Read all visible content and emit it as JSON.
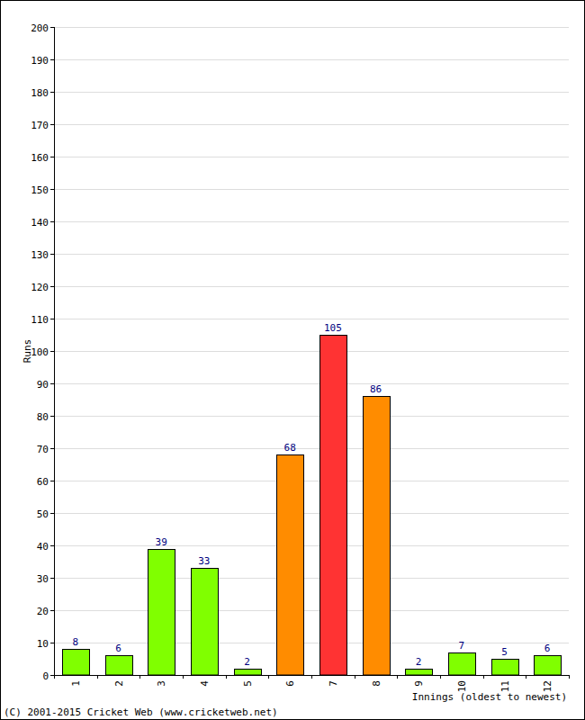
{
  "chart_data": {
    "type": "bar",
    "x_label": "Innings (oldest to newest)",
    "y_label": "Runs",
    "annotations": [
      "(C) 2001-2015 Cricket Web (www.cricketweb.net)"
    ],
    "categories": [
      "1",
      "2",
      "3",
      "4",
      "5",
      "6",
      "7",
      "8",
      "9",
      "10",
      "11",
      "12"
    ],
    "values": [
      8,
      6,
      39,
      33,
      2,
      68,
      105,
      86,
      2,
      7,
      5,
      6
    ],
    "colors": [
      "#80ff00",
      "#80ff00",
      "#80ff00",
      "#80ff00",
      "#80ff00",
      "#ff8c00",
      "#ff3333",
      "#ff8c00",
      "#80ff00",
      "#80ff00",
      "#80ff00",
      "#80ff00"
    ],
    "ylim": [
      0,
      200
    ],
    "yticks": [
      0,
      10,
      20,
      30,
      40,
      50,
      60,
      70,
      80,
      90,
      100,
      110,
      120,
      130,
      140,
      150,
      160,
      170,
      180,
      190,
      200
    ],
    "grid": true,
    "data_labels": true
  }
}
